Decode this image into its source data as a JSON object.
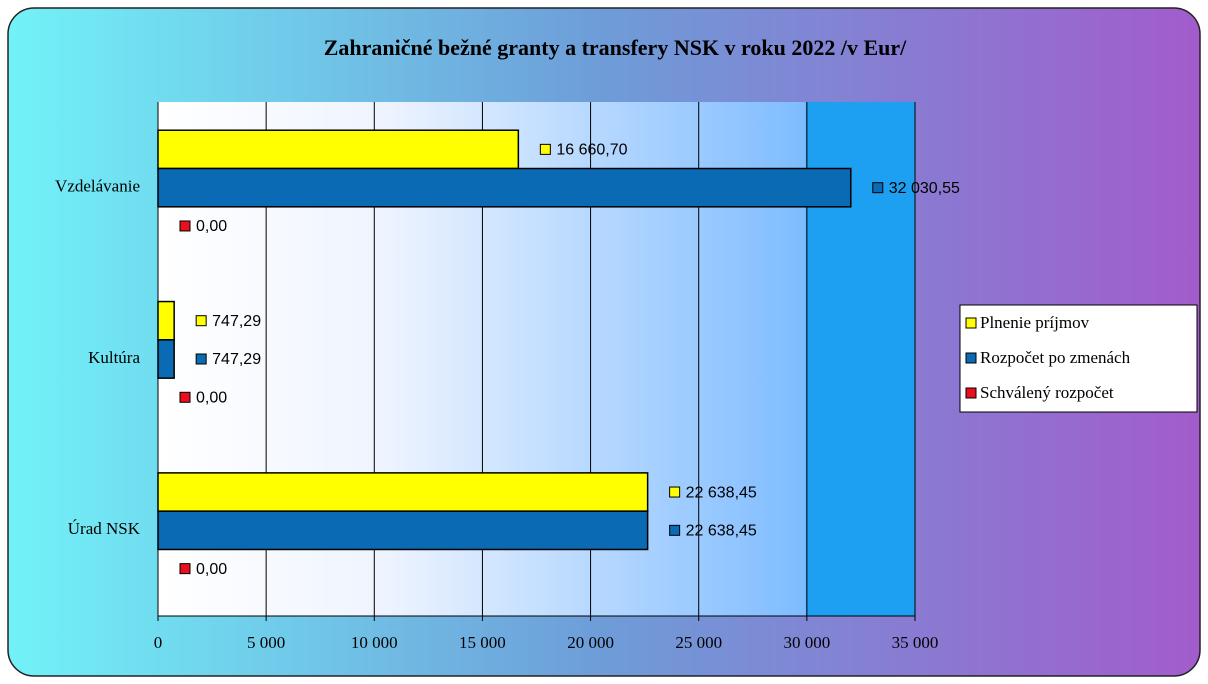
{
  "chart_data": {
    "type": "hbar",
    "title": "Zahraničné  bežné granty a transfery NSK v roku 2022   /v Eur/",
    "categories": [
      "Vzdelávanie",
      "Kultúra",
      "Úrad NSK"
    ],
    "series": [
      {
        "name": "Plnenie príjmov",
        "color": "#ffff00",
        "values": [
          16660.7,
          747.29,
          22638.45
        ],
        "value_labels": [
          "16 660,70",
          "747,29",
          "22 638,45"
        ]
      },
      {
        "name": "Rozpočet po zmenách",
        "color": "#0a6ab4",
        "values": [
          32030.55,
          747.29,
          22638.45
        ],
        "value_labels": [
          "32 030,55",
          "747,29",
          "22 638,45"
        ]
      },
      {
        "name": "Schválený rozpočet",
        "color": "#e8101c",
        "values": [
          0,
          0,
          0
        ],
        "value_labels": [
          "0,00",
          "0,00",
          "0,00"
        ]
      }
    ],
    "xlim": [
      0,
      35000
    ],
    "xticks": [
      0,
      {
        "value": 5000,
        "label": "5 000"
      },
      {
        "value": 10000,
        "label": "10 000"
      },
      {
        "value": 15000,
        "label": "15 000"
      },
      {
        "value": 20000,
        "label": "20 000"
      },
      {
        "value": 25000,
        "label": "25 000"
      },
      {
        "value": 30000,
        "label": "30 000"
      },
      {
        "value": 35000,
        "label": "35 000"
      }
    ],
    "grid": true,
    "legend": "right"
  }
}
